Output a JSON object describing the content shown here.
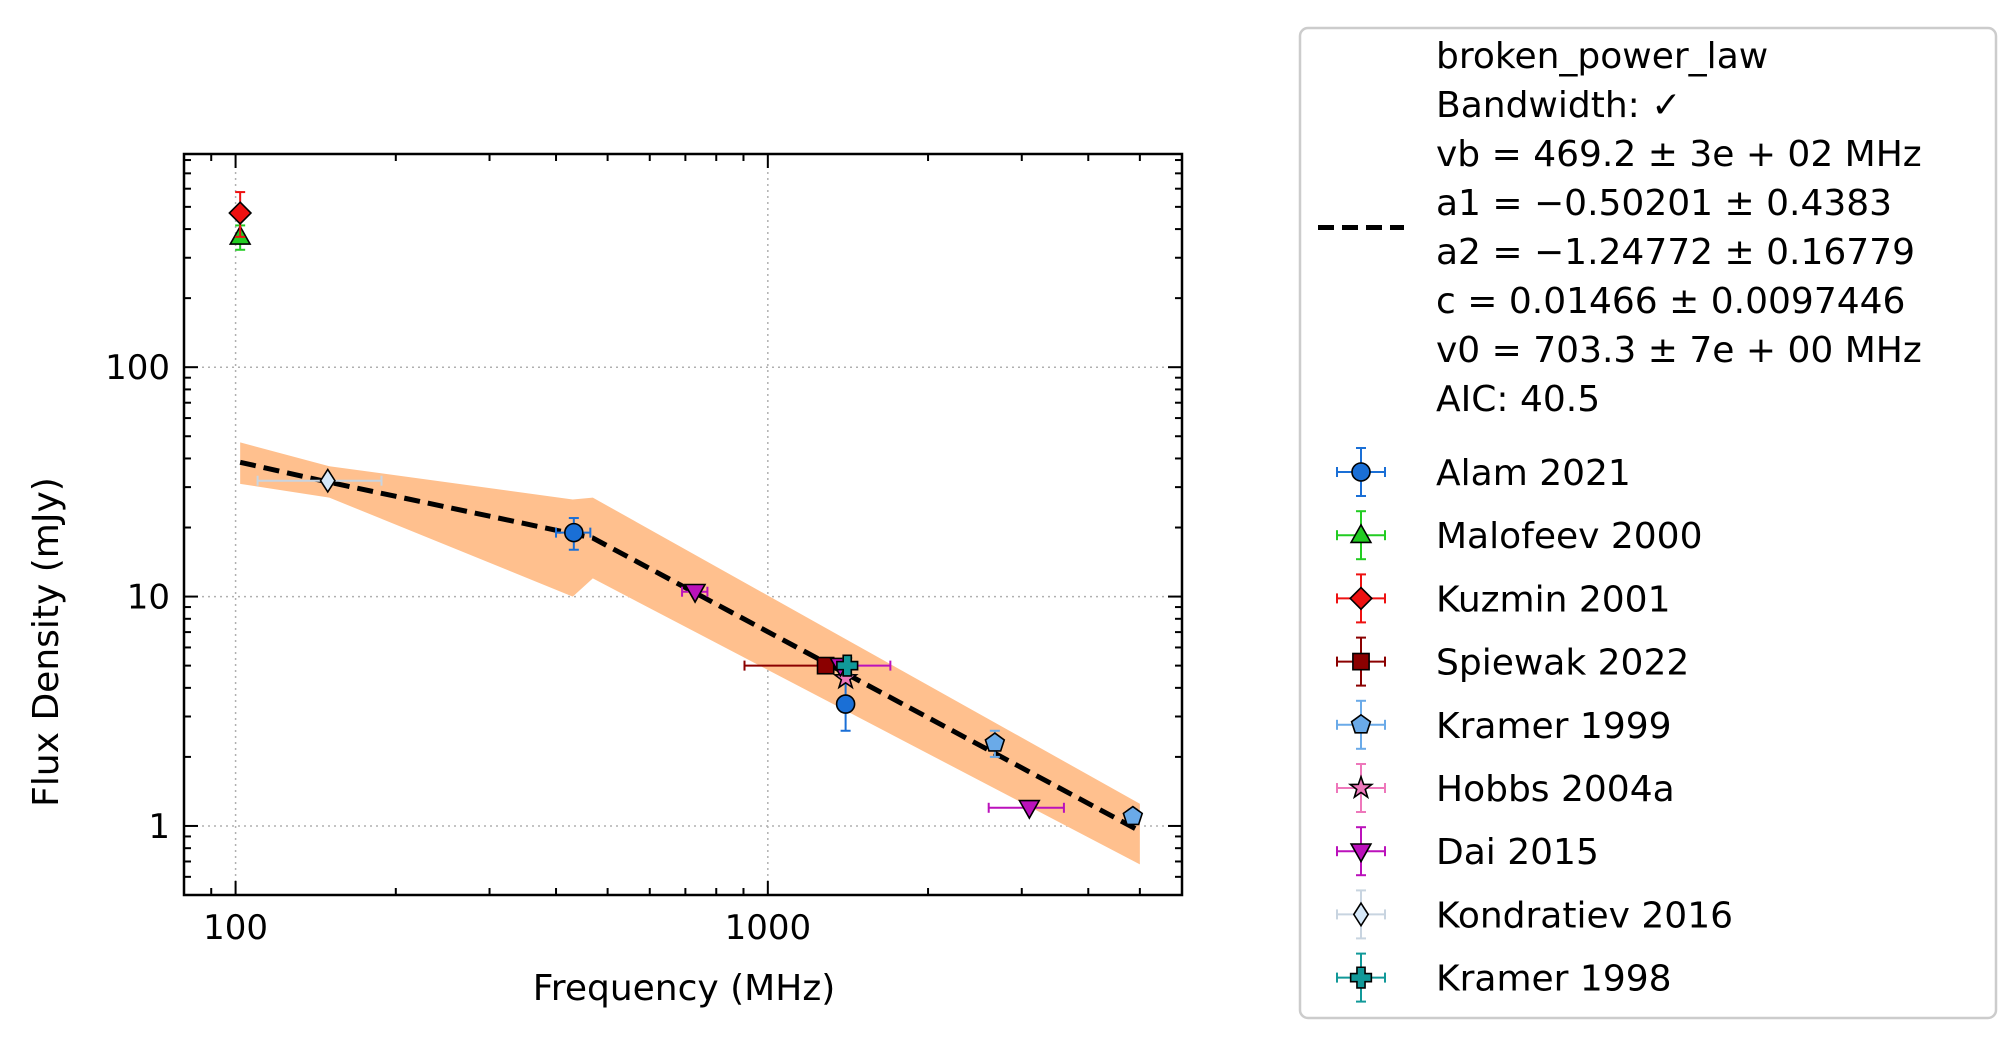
{
  "chart_data": {
    "type": "scatter",
    "xlabel": "Frequency (MHz)",
    "ylabel": "Flux Density (mJy)",
    "x_scale": "log",
    "y_scale": "log",
    "xlim": [
      80,
      6000
    ],
    "ylim": [
      0.5,
      850
    ],
    "grid": true,
    "legend_position": "outside-right",
    "x_ticks": [
      {
        "value": 100,
        "label": "100"
      },
      {
        "value": 1000,
        "label": "1000"
      }
    ],
    "y_ticks": [
      {
        "value": 1,
        "label": "1"
      },
      {
        "value": 10,
        "label": "10"
      },
      {
        "value": 100,
        "label": "100"
      }
    ],
    "fit": {
      "legend_lines": [
        "broken_power_law",
        "Bandwidth: ✓",
        "vb = 469.2 ± 3e + 02 MHz",
        "a1 = −0.50201 ± 0.4383",
        "a2 = −1.24772 ± 0.16779",
        "c = 0.01466 ± 0.0097446",
        "v0 = 703.3 ± 7e + 00 MHz",
        "AIC: 40.5"
      ],
      "line_color": "#000000",
      "band_color": "#ffc08e",
      "curve": [
        [
          102,
          38.5
        ],
        [
          150,
          31.5
        ],
        [
          469,
          18.0
        ],
        [
          5000,
          0.95
        ]
      ],
      "band_upper": [
        [
          102,
          47
        ],
        [
          150,
          37
        ],
        [
          430,
          26.5
        ],
        [
          469,
          27
        ],
        [
          5000,
          1.25
        ]
      ],
      "band_lower": [
        [
          102,
          31
        ],
        [
          150,
          27
        ],
        [
          430,
          10
        ],
        [
          469,
          12
        ],
        [
          5000,
          0.68
        ]
      ]
    },
    "series": [
      {
        "name": "Alam 2021",
        "marker": "circle",
        "color": "#1a6fd6",
        "ecolor": "#1a6fd6",
        "points": [
          {
            "x": 432,
            "y": 19,
            "xerr": [
              32,
              32
            ],
            "yerr": [
              3,
              3
            ]
          },
          {
            "x": 1400,
            "y": 3.4,
            "xerr": [
              0,
              0
            ],
            "yerr": [
              0.8,
              0.9
            ]
          }
        ]
      },
      {
        "name": "Malofeev 2000",
        "marker": "triangle-up",
        "color": "#22cc22",
        "ecolor": "#22cc22",
        "points": [
          {
            "x": 102,
            "y": 370,
            "xerr": [
              0,
              0
            ],
            "yerr": [
              45,
              45
            ]
          }
        ]
      },
      {
        "name": "Kuzmin 2001",
        "marker": "diamond",
        "color": "#ee1111",
        "ecolor": "#ee1111",
        "points": [
          {
            "x": 102,
            "y": 470,
            "xerr": [
              0,
              0
            ],
            "yerr": [
              100,
              110
            ]
          }
        ]
      },
      {
        "name": "Spiewak 2022",
        "marker": "square",
        "color": "#8b0000",
        "ecolor": "#8b0000",
        "points": [
          {
            "x": 1284,
            "y": 5.0,
            "xerr": [
              380,
              0
            ],
            "yerr": [
              0,
              0
            ]
          }
        ]
      },
      {
        "name": "Kramer 1999",
        "marker": "pentagon",
        "color": "#6aaae8",
        "ecolor": "#6aaae8",
        "points": [
          {
            "x": 2670,
            "y": 2.3,
            "xerr": [
              0,
              0
            ],
            "yerr": [
              0.3,
              0.3
            ]
          },
          {
            "x": 4850,
            "y": 1.1,
            "xerr": [
              0,
              0
            ],
            "yerr": [
              0.08,
              0.08
            ]
          }
        ]
      },
      {
        "name": "Hobbs 2004a",
        "marker": "star",
        "color": "#ee77bb",
        "ecolor": "#ee77bb",
        "points": [
          {
            "x": 1400,
            "y": 4.4,
            "xerr": [
              0,
              0
            ],
            "yerr": [
              0,
              0
            ]
          }
        ]
      },
      {
        "name": "Dai 2015",
        "marker": "triangle-down",
        "color": "#bb11bb",
        "ecolor": "#bb11bb",
        "points": [
          {
            "x": 730,
            "y": 10.5,
            "xerr": [
              40,
              40
            ],
            "yerr": [
              0,
              0
            ]
          },
          {
            "x": 1369,
            "y": 5.0,
            "xerr": [
              0,
              330
            ],
            "yerr": [
              0,
              0
            ]
          },
          {
            "x": 3100,
            "y": 1.2,
            "xerr": [
              500,
              500
            ],
            "yerr": [
              0,
              0
            ]
          }
        ]
      },
      {
        "name": "Kondratiev 2016",
        "marker": "thin-diamond",
        "color": "#d6e8f8",
        "ecolor": "#c8d4e0",
        "points": [
          {
            "x": 149,
            "y": 32,
            "xerr": [
              39,
              39
            ],
            "yerr": [
              0,
              0
            ]
          }
        ]
      },
      {
        "name": "Kramer 1998",
        "marker": "plus",
        "color": "#119999",
        "ecolor": "#119999",
        "points": [
          {
            "x": 1410,
            "y": 5.0,
            "xerr": [
              0,
              0
            ],
            "yerr": [
              0.4,
              0.4
            ]
          }
        ]
      }
    ]
  }
}
